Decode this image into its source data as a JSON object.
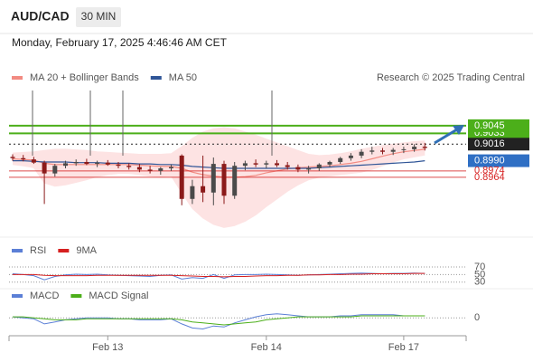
{
  "header": {
    "symbol": "AUD/CAD",
    "interval": "30 MIN",
    "datetime": "Monday, February 17, 2025 4:46:46 AM CET"
  },
  "chart_data": [
    {
      "type": "candlestick",
      "credit": "Research © 2025 Trading Central",
      "open": [
        0.8996,
        0.8994,
        0.8992,
        0.8987,
        0.897,
        0.8982,
        0.8986,
        0.8988,
        0.8985,
        0.8987,
        0.8984,
        0.8982,
        0.898,
        0.8976,
        0.8974,
        0.8978,
        0.8998,
        0.893,
        0.895,
        0.894,
        0.8985,
        0.8935,
        0.8982,
        0.8986,
        0.8984,
        0.8986,
        0.8983,
        0.898,
        0.8976,
        0.8978,
        0.8984,
        0.8988,
        0.8994,
        0.8998,
        0.9004,
        0.9006,
        0.9004,
        0.9007,
        0.9008,
        0.9012
      ],
      "high": [
        0.9,
        0.8999,
        0.8996,
        0.899,
        0.8985,
        0.899,
        0.8992,
        0.8993,
        0.899,
        0.8991,
        0.8988,
        0.8986,
        0.8985,
        0.8982,
        0.898,
        0.8984,
        0.9,
        0.896,
        0.8998,
        0.8995,
        0.899,
        0.8988,
        0.899,
        0.8992,
        0.899,
        0.8991,
        0.8988,
        0.8984,
        0.8982,
        0.8986,
        0.899,
        0.8996,
        0.9002,
        0.9008,
        0.9012,
        0.901,
        0.901,
        0.9012,
        0.9016,
        0.9018
      ],
      "low": [
        0.899,
        0.8989,
        0.8985,
        0.8922,
        0.8965,
        0.8978,
        0.8982,
        0.8983,
        0.898,
        0.8982,
        0.8978,
        0.8976,
        0.8972,
        0.897,
        0.8968,
        0.8974,
        0.892,
        0.8922,
        0.8925,
        0.892,
        0.8922,
        0.893,
        0.8975,
        0.898,
        0.8978,
        0.898,
        0.8976,
        0.8972,
        0.897,
        0.8974,
        0.898,
        0.8985,
        0.899,
        0.8994,
        0.9,
        0.9,
        0.8999,
        0.9002,
        0.9004,
        0.9006
      ],
      "close": [
        0.8994,
        0.8992,
        0.8987,
        0.897,
        0.8982,
        0.8986,
        0.8988,
        0.8985,
        0.8987,
        0.8984,
        0.8982,
        0.898,
        0.8976,
        0.8974,
        0.8978,
        0.898,
        0.893,
        0.895,
        0.894,
        0.8985,
        0.8935,
        0.8982,
        0.8986,
        0.8984,
        0.8986,
        0.8983,
        0.898,
        0.8976,
        0.8978,
        0.8984,
        0.8988,
        0.8994,
        0.8998,
        0.9004,
        0.9006,
        0.9004,
        0.9007,
        0.9008,
        0.9012,
        0.901
      ],
      "up_color": "#4a4a4a",
      "down_color": "#8b1a1a",
      "series": [
        {
          "name": "MA 20 + Bollinger Bands",
          "color": "#f28b82",
          "band_color": "#fde3e3",
          "values": [
            0.8993,
            0.8992,
            0.8991,
            0.8986,
            0.8984,
            0.8984,
            0.8984,
            0.8984,
            0.8984,
            0.8984,
            0.8984,
            0.8984,
            0.8983,
            0.8982,
            0.8981,
            0.8981,
            0.8978,
            0.8972,
            0.8968,
            0.8966,
            0.8964,
            0.8964,
            0.8965,
            0.8967,
            0.8971,
            0.8974,
            0.8977,
            0.8979,
            0.898,
            0.8981,
            0.8982,
            0.8984,
            0.8986,
            0.8989,
            0.8993,
            0.8997,
            0.9001,
            0.9004,
            0.9006,
            0.9008
          ],
          "upper": [
            0.9002,
            0.9003,
            0.9004,
            0.9006,
            0.9008,
            0.9008,
            0.9007,
            0.9006,
            0.9004,
            0.9003,
            0.9002,
            0.9001,
            0.9,
            0.9,
            0.9,
            0.9001,
            0.9012,
            0.9025,
            0.9035,
            0.904,
            0.9042,
            0.904,
            0.9035,
            0.903,
            0.9024,
            0.9018,
            0.9012,
            0.9006,
            0.9,
            0.8998,
            0.8999,
            0.9001,
            0.9004,
            0.9008,
            0.9011,
            0.9014,
            0.9016,
            0.9018,
            0.902,
            0.9021
          ],
          "lower": [
            0.8984,
            0.8982,
            0.8979,
            0.8955,
            0.895,
            0.8952,
            0.8956,
            0.896,
            0.8965,
            0.8968,
            0.897,
            0.897,
            0.8968,
            0.8966,
            0.8965,
            0.8966,
            0.894,
            0.8915,
            0.89,
            0.889,
            0.8885,
            0.8888,
            0.8895,
            0.8905,
            0.8918,
            0.893,
            0.8942,
            0.8952,
            0.896,
            0.8964,
            0.8966,
            0.8968,
            0.897,
            0.8972,
            0.8976,
            0.8982,
            0.8988,
            0.8993,
            0.8996,
            0.8999
          ]
        },
        {
          "name": "MA 50",
          "color": "#2f5597",
          "values": [
            0.899,
            0.899,
            0.8989,
            0.8988,
            0.8988,
            0.8988,
            0.8987,
            0.8987,
            0.8987,
            0.8986,
            0.8986,
            0.8986,
            0.8985,
            0.8985,
            0.8984,
            0.8984,
            0.8983,
            0.8981,
            0.898,
            0.8979,
            0.8978,
            0.8978,
            0.8978,
            0.8978,
            0.8978,
            0.8978,
            0.8978,
            0.8978,
            0.8978,
            0.8979,
            0.898,
            0.8981,
            0.8982,
            0.8983,
            0.8984,
            0.8985,
            0.8986,
            0.8987,
            0.8988,
            0.899
          ]
        }
      ],
      "levels": [
        {
          "value": 0.9033,
          "color": "#4caf1a",
          "line": "solid",
          "style": "box"
        },
        {
          "value": 0.9045,
          "color": "#4caf1a",
          "line": "solid",
          "style": "box"
        },
        {
          "value": 0.9016,
          "color": "#222222",
          "line": "dotted",
          "style": "box"
        },
        {
          "value": 0.899,
          "label": "0.8990",
          "color": "#2f6fc4",
          "line": "none",
          "style": "box"
        },
        {
          "value": 0.8974,
          "color": "#d62020",
          "line": "solid",
          "style": "text"
        },
        {
          "value": 0.8964,
          "color": "#d62020",
          "line": "solid",
          "style": "text"
        }
      ],
      "ylim": [
        0.887,
        0.915
      ],
      "xticks": [
        {
          "value": 9,
          "label": "Feb 13"
        },
        {
          "value": 24,
          "label": "Feb 14"
        },
        {
          "value": 37,
          "label": "Feb 17"
        }
      ]
    },
    {
      "type": "line",
      "ylim": [
        15,
        82
      ],
      "yticks": [
        70,
        50,
        30
      ],
      "series": [
        {
          "name": "RSI",
          "color": "#5b7fd6",
          "values": [
            52,
            50,
            47,
            36,
            45,
            49,
            51,
            50,
            51,
            49,
            48,
            47,
            46,
            45,
            48,
            49,
            38,
            42,
            40,
            50,
            40,
            49,
            50,
            50,
            51,
            50,
            49,
            48,
            49,
            50,
            51,
            52,
            53,
            54,
            53,
            52,
            53,
            53,
            54,
            53
          ]
        },
        {
          "name": "9MA",
          "color": "#d62020",
          "values": [
            50,
            50,
            50,
            48,
            47,
            47,
            47,
            47,
            48,
            48,
            48,
            48,
            48,
            48,
            48,
            48,
            47,
            46,
            45,
            45,
            44,
            45,
            45,
            46,
            47,
            47,
            48,
            48,
            49,
            49,
            50,
            50,
            51,
            51,
            52,
            52,
            52,
            52,
            53,
            53
          ]
        }
      ]
    },
    {
      "type": "line",
      "ylim": [
        -0.0015,
        0.001
      ],
      "yticks": [
        0
      ],
      "series": [
        {
          "name": "MACD",
          "color": "#5b7fd6",
          "values": [
            0.0001,
            0,
            -0.0001,
            -0.0006,
            -0.0004,
            -0.0002,
            -0.0001,
            0,
            0,
            0,
            -0.0001,
            -0.0001,
            -0.0002,
            -0.0002,
            -0.0002,
            -0.0001,
            -0.0006,
            -0.001,
            -0.0011,
            -0.0008,
            -0.0009,
            -0.0005,
            -0.0002,
            0.0001,
            0.0003,
            0.0004,
            0.0003,
            0.0002,
            0.0001,
            0.0001,
            0.0001,
            0.0002,
            0.0002,
            0.0003,
            0.0003,
            0.0003,
            0.0003,
            0.0002,
            0.0002,
            0.0002
          ]
        },
        {
          "name": "MACD Signal",
          "color": "#4caf1a",
          "values": [
            0.0001,
            0.0001,
            0,
            -0.0001,
            -0.0002,
            -0.0002,
            -0.0002,
            -0.0001,
            -0.0001,
            -0.0001,
            -0.0001,
            -0.0001,
            -0.0001,
            -0.0001,
            -0.0001,
            -0.0001,
            -0.0002,
            -0.0004,
            -0.0005,
            -0.0006,
            -0.0007,
            -0.0006,
            -0.0005,
            -0.0004,
            -0.0002,
            -0.0001,
            0,
            0.0001,
            0.0001,
            0.0001,
            0.0001,
            0.0001,
            0.0001,
            0.0002,
            0.0002,
            0.0002,
            0.0002,
            0.0002,
            0.0002,
            0.0002
          ]
        }
      ]
    }
  ]
}
